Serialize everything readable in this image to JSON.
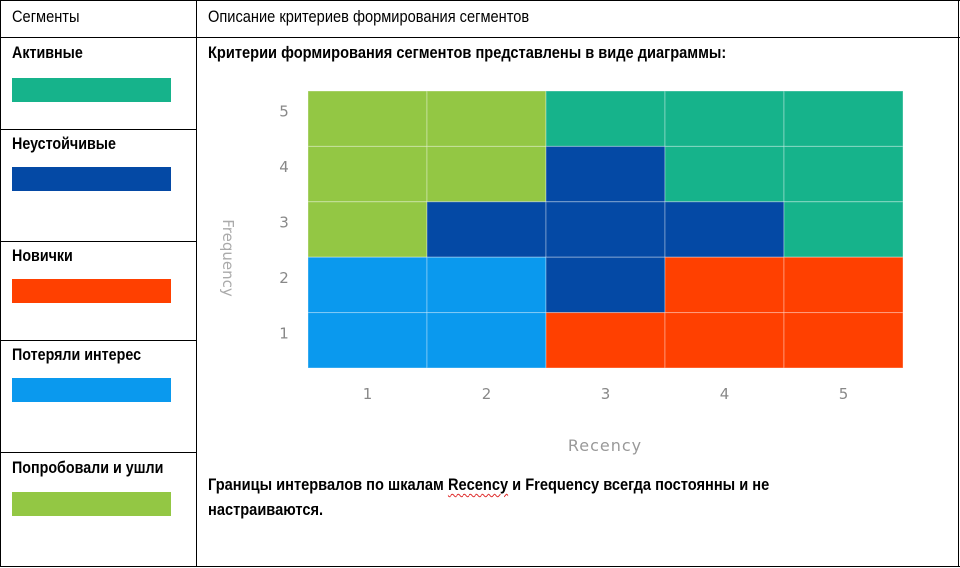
{
  "header": {
    "col1": "Сегменты",
    "col2": "Описание критериев формирования сегментов"
  },
  "segments": [
    {
      "label": "Активные",
      "color": "#16b38b"
    },
    {
      "label": "Неустойчивые",
      "color": "#0449a5"
    },
    {
      "label": "Новички",
      "color": "#ff4000"
    },
    {
      "label": "Потеряли интерес",
      "color": "#0a99ee"
    },
    {
      "label": "Попробовали и ушли",
      "color": "#93c744"
    }
  ],
  "description": {
    "intro": "Критерии формирования сегментов представлены в виде диаграммы:",
    "note_before": "Границы интервалов по шкалам ",
    "note_recency": "Recency",
    "note_after": " и Frequency всегда постоянны и не настраиваются."
  },
  "chart_data": {
    "type": "heatmap",
    "xlabel": "Recency",
    "ylabel": "Frequency",
    "x_ticks": [
      "1",
      "2",
      "3",
      "4",
      "5"
    ],
    "y_ticks": [
      "1",
      "2",
      "3",
      "4",
      "5"
    ],
    "legend_colors": {
      "Активные": "#16b38b",
      "Неустойчивые": "#0449a5",
      "Новички": "#ff4000",
      "Потеряли интерес": "#0a99ee",
      "Попробовали и ушли": "#93c744"
    },
    "grid_rows_top_to_bottom": [
      {
        "frequency": 5,
        "cells": [
          "Попробовали и ушли",
          "Попробовали и ушли",
          "Активные",
          "Активные",
          "Активные"
        ]
      },
      {
        "frequency": 4,
        "cells": [
          "Попробовали и ушли",
          "Попробовали и ушли",
          "Неустойчивые",
          "Активные",
          "Активные"
        ]
      },
      {
        "frequency": 3,
        "cells": [
          "Попробовали и ушли",
          "Неустойчивые",
          "Неустойчивые",
          "Неустойчивые",
          "Активные"
        ]
      },
      {
        "frequency": 2,
        "cells": [
          "Потеряли интерес",
          "Потеряли интерес",
          "Неустойчивые",
          "Новички",
          "Новички"
        ]
      },
      {
        "frequency": 1,
        "cells": [
          "Потеряли интерес",
          "Потеряли интерес",
          "Новички",
          "Новички",
          "Новички"
        ]
      }
    ]
  }
}
